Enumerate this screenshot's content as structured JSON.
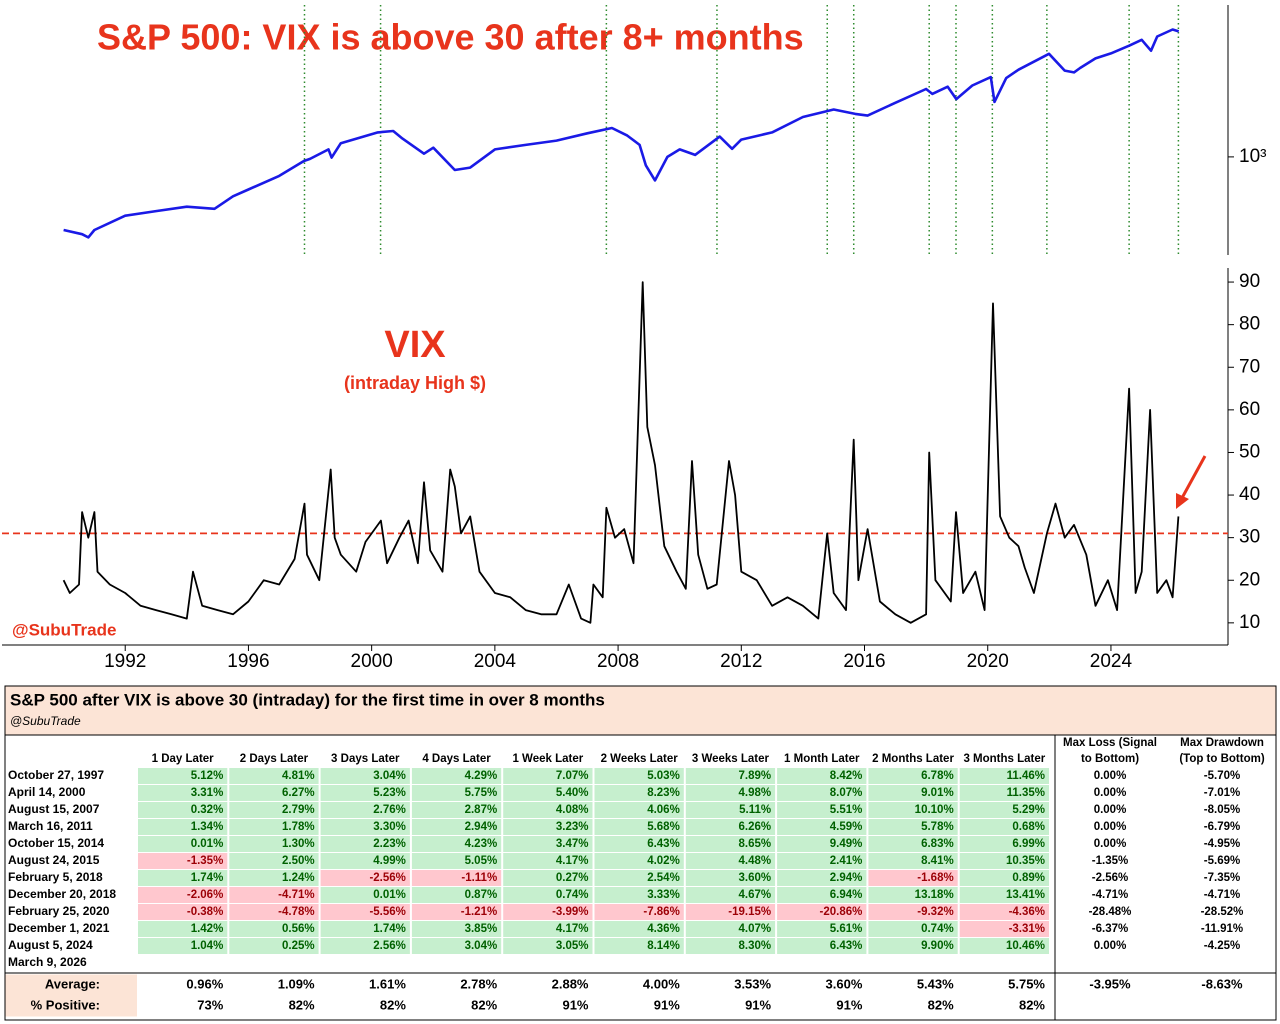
{
  "chart_data": [
    {
      "type": "line",
      "title": "S&P 500: VIX is above 30 after 8+ months",
      "log_scale": true,
      "xlim": [
        1988,
        2027.8
      ],
      "ylim": [
        226,
        10000
      ],
      "yticks": [
        {
          "value": 1000,
          "label": "10³"
        }
      ],
      "vlines_x": [
        1997.82,
        2000.29,
        2007.62,
        2011.21,
        2014.79,
        2015.65,
        2018.1,
        2018.97,
        2020.15,
        2021.92,
        2024.59,
        2026.19
      ],
      "vlines_color": "#2e8b2e",
      "x": [
        1990.0,
        1990.6,
        1990.8,
        1991.0,
        1992.0,
        1993.0,
        1994.0,
        1994.9,
        1995.5,
        1996.0,
        1997.0,
        1997.8,
        1998.0,
        1998.6,
        1998.7,
        1999.0,
        2000.2,
        2000.7,
        2001.0,
        2001.7,
        2002.0,
        2002.7,
        2003.2,
        2004.0,
        2005.0,
        2006.0,
        2007.0,
        2007.8,
        2008.3,
        2008.7,
        2008.9,
        2009.2,
        2009.6,
        2010.0,
        2010.5,
        2011.3,
        2011.7,
        2012.0,
        2013.0,
        2014.0,
        2015.0,
        2015.7,
        2016.1,
        2017.0,
        2018.0,
        2018.2,
        2018.7,
        2018.98,
        2019.5,
        2020.1,
        2020.22,
        2020.6,
        2021.0,
        2021.99,
        2022.5,
        2022.8,
        2023.0,
        2023.5,
        2024.0,
        2024.6,
        2025.0,
        2025.3,
        2025.5,
        2026.0,
        2026.2
      ],
      "series": [
        {
          "color": "#1a1ae6",
          "values": [
            330,
            310,
            295,
            330,
            410,
            440,
            470,
            455,
            550,
            610,
            750,
            940,
            970,
            1120,
            990,
            1230,
            1450,
            1480,
            1320,
            1050,
            1150,
            820,
            850,
            1120,
            1200,
            1280,
            1430,
            1550,
            1380,
            1200,
            880,
            700,
            1000,
            1120,
            1030,
            1360,
            1130,
            1300,
            1450,
            1830,
            2050,
            1920,
            1870,
            2270,
            2800,
            2600,
            2900,
            2400,
            2950,
            3350,
            2300,
            3300,
            3750,
            4770,
            3700,
            3600,
            3850,
            4450,
            4800,
            5400,
            5900,
            5000,
            6200,
            6900,
            6700
          ]
        }
      ]
    },
    {
      "type": "line",
      "title": "VIX",
      "subtitle": "(intraday High $)",
      "annotation": "@SubuTrade",
      "xlim": [
        1988,
        2027.8
      ],
      "ylim": [
        4.8,
        93.3
      ],
      "xticks": [
        1992,
        1996,
        2000,
        2004,
        2008,
        2012,
        2016,
        2020,
        2024
      ],
      "yticks": [
        10,
        20,
        30,
        40,
        50,
        60,
        70,
        80,
        90
      ],
      "threshold": 31,
      "threshold_color": "#e8341c",
      "x": [
        1990.0,
        1990.2,
        1990.5,
        1990.6,
        1990.8,
        1991.0,
        1991.1,
        1991.5,
        1992.0,
        1992.5,
        1993.0,
        1993.5,
        1994.0,
        1994.2,
        1994.5,
        1995.0,
        1995.5,
        1996.0,
        1996.5,
        1997.0,
        1997.5,
        1997.82,
        1997.9,
        1998.3,
        1998.67,
        1998.8,
        1999.0,
        1999.5,
        1999.8,
        2000.3,
        2000.5,
        2000.9,
        2001.2,
        2001.5,
        2001.7,
        2001.9,
        2002.3,
        2002.55,
        2002.7,
        2002.9,
        2003.2,
        2003.5,
        2004.0,
        2004.5,
        2005.0,
        2005.5,
        2006.0,
        2006.4,
        2006.8,
        2007.1,
        2007.2,
        2007.5,
        2007.62,
        2007.9,
        2008.2,
        2008.5,
        2008.8,
        2008.95,
        2009.2,
        2009.5,
        2009.9,
        2010.2,
        2010.4,
        2010.6,
        2010.9,
        2011.2,
        2011.6,
        2011.8,
        2012.0,
        2012.5,
        2013.0,
        2013.5,
        2014.0,
        2014.5,
        2014.79,
        2015.0,
        2015.4,
        2015.65,
        2015.8,
        2016.1,
        2016.5,
        2017.0,
        2017.5,
        2018.0,
        2018.1,
        2018.3,
        2018.8,
        2018.97,
        2019.2,
        2019.6,
        2019.9,
        2020.17,
        2020.4,
        2020.7,
        2021.0,
        2021.2,
        2021.5,
        2021.92,
        2022.2,
        2022.5,
        2022.8,
        2023.2,
        2023.5,
        2023.9,
        2024.2,
        2024.59,
        2024.8,
        2025.0,
        2025.27,
        2025.5,
        2025.8,
        2026.0,
        2026.19
      ],
      "series": [
        {
          "color": "#000000",
          "values": [
            20,
            17,
            19,
            36,
            30,
            36,
            22,
            19,
            17,
            14,
            13,
            12,
            11,
            22,
            14,
            13,
            12,
            15,
            20,
            19,
            25,
            38,
            26,
            20,
            46,
            30,
            26,
            22,
            29,
            34,
            24,
            30,
            34,
            24,
            43,
            27,
            22,
            46,
            42,
            31,
            35,
            22,
            17,
            16,
            13,
            12,
            12,
            19,
            11,
            10,
            19,
            16,
            37,
            30,
            32,
            24,
            90,
            56,
            47,
            28,
            22,
            18,
            48,
            26,
            18,
            19,
            48,
            40,
            22,
            20,
            14,
            16,
            14,
            11,
            31,
            17,
            13,
            53,
            20,
            32,
            15,
            12,
            10,
            12,
            50,
            20,
            15,
            36,
            17,
            22,
            13,
            85,
            35,
            30,
            28,
            23,
            17,
            31,
            38,
            30,
            33,
            26,
            14,
            20,
            13,
            65,
            17,
            22,
            60,
            17,
            20,
            16,
            35
          ]
        }
      ]
    }
  ],
  "table": {
    "title": "S&P 500 after VIX is above 30 (intraday) for the first time in over 8 months",
    "subtitle": "@SubuTrade",
    "columns": [
      "1 Day Later",
      "2 Days Later",
      "3 Days Later",
      "4 Days Later",
      "1 Week Later",
      "2 Weeks Later",
      "3 Weeks Later",
      "1 Month Later",
      "2 Months Later",
      "3 Months Later",
      [
        "Max Loss (Signal",
        "to Bottom)"
      ],
      [
        "Max Drawdown",
        "(Top to Bottom)"
      ]
    ],
    "rows": [
      {
        "label": "October 27, 1997",
        "cells": [
          "5.12%",
          "4.81%",
          "3.04%",
          "4.29%",
          "7.07%",
          "5.03%",
          "7.89%",
          "8.42%",
          "6.78%",
          "11.46%",
          "0.00%",
          "-5.70%"
        ]
      },
      {
        "label": "April 14, 2000",
        "cells": [
          "3.31%",
          "6.27%",
          "5.23%",
          "5.75%",
          "5.40%",
          "8.23%",
          "4.98%",
          "8.07%",
          "9.01%",
          "11.35%",
          "0.00%",
          "-7.01%"
        ]
      },
      {
        "label": "August 15, 2007",
        "cells": [
          "0.32%",
          "2.79%",
          "2.76%",
          "2.87%",
          "4.08%",
          "4.06%",
          "5.11%",
          "5.51%",
          "10.10%",
          "5.29%",
          "0.00%",
          "-8.05%"
        ]
      },
      {
        "label": "March 16, 2011",
        "cells": [
          "1.34%",
          "1.78%",
          "3.30%",
          "2.94%",
          "3.23%",
          "5.68%",
          "6.26%",
          "4.59%",
          "5.78%",
          "0.68%",
          "0.00%",
          "-6.79%"
        ]
      },
      {
        "label": "October 15, 2014",
        "cells": [
          "0.01%",
          "1.30%",
          "2.23%",
          "4.23%",
          "3.47%",
          "6.43%",
          "8.65%",
          "9.49%",
          "6.83%",
          "6.99%",
          "0.00%",
          "-4.95%"
        ]
      },
      {
        "label": "August 24, 2015",
        "cells": [
          "-1.35%",
          "2.50%",
          "4.99%",
          "5.05%",
          "4.17%",
          "4.02%",
          "4.48%",
          "2.41%",
          "8.41%",
          "10.35%",
          "-1.35%",
          "-5.69%"
        ]
      },
      {
        "label": "February 5, 2018",
        "cells": [
          "1.74%",
          "1.24%",
          "-2.56%",
          "-1.11%",
          "0.27%",
          "2.54%",
          "3.60%",
          "2.94%",
          "-1.68%",
          "0.89%",
          "-2.56%",
          "-7.35%"
        ]
      },
      {
        "label": "December 20, 2018",
        "cells": [
          "-2.06%",
          "-4.71%",
          "0.01%",
          "0.87%",
          "0.74%",
          "3.33%",
          "4.67%",
          "6.94%",
          "13.18%",
          "13.41%",
          "-4.71%",
          "-4.71%"
        ]
      },
      {
        "label": "February 25, 2020",
        "cells": [
          "-0.38%",
          "-4.78%",
          "-5.56%",
          "-1.21%",
          "-3.99%",
          "-7.86%",
          "-19.15%",
          "-20.86%",
          "-9.32%",
          "-4.36%",
          "-28.48%",
          "-28.52%"
        ]
      },
      {
        "label": "December 1, 2021",
        "cells": [
          "1.42%",
          "0.56%",
          "1.74%",
          "3.85%",
          "4.17%",
          "4.36%",
          "4.07%",
          "5.61%",
          "0.74%",
          "-3.31%",
          "-6.37%",
          "-11.91%"
        ]
      },
      {
        "label": "August 5, 2024",
        "cells": [
          "1.04%",
          "0.25%",
          "2.56%",
          "3.04%",
          "3.05%",
          "8.14%",
          "8.30%",
          "6.43%",
          "9.90%",
          "10.46%",
          "0.00%",
          "-4.25%"
        ]
      },
      {
        "label": "March 9, 2026",
        "cells": []
      }
    ],
    "summary": [
      {
        "label": "Average:",
        "cells": [
          "0.96%",
          "1.09%",
          "1.61%",
          "2.78%",
          "2.88%",
          "4.00%",
          "3.53%",
          "3.60%",
          "5.43%",
          "5.75%",
          "-3.95%",
          "-8.63%"
        ]
      },
      {
        "label": "% Positive:",
        "cells": [
          "73%",
          "82%",
          "82%",
          "82%",
          "91%",
          "91%",
          "91%",
          "91%",
          "82%",
          "82%"
        ]
      }
    ]
  }
}
